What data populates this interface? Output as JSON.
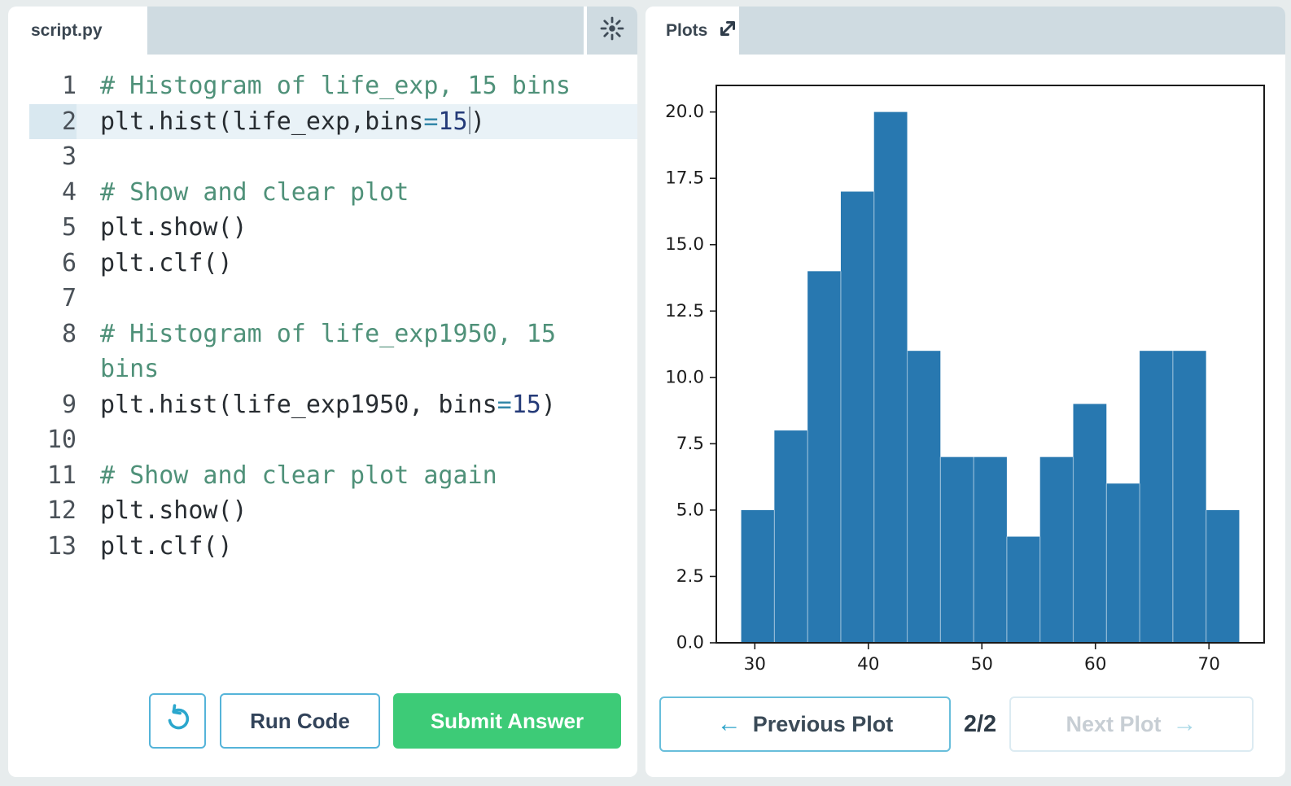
{
  "editor": {
    "tab_label": "script.py",
    "active_line": 2,
    "rows": [
      {
        "n": "1",
        "seg": [
          {
            "t": "# Histogram of life_exp, 15 bins",
            "c": "com"
          }
        ]
      },
      {
        "n": "2",
        "active": true,
        "seg": [
          {
            "t": "plt.hist(life_exp,bins",
            "c": "code"
          },
          {
            "t": "=",
            "c": "op"
          },
          {
            "t": "15",
            "c": "num",
            "cursor": true
          },
          {
            "t": ")",
            "c": "code"
          }
        ]
      },
      {
        "n": "3",
        "seg": []
      },
      {
        "n": "4",
        "seg": [
          {
            "t": "# Show and clear plot",
            "c": "com"
          }
        ]
      },
      {
        "n": "5",
        "seg": [
          {
            "t": "plt.show()",
            "c": "code"
          }
        ]
      },
      {
        "n": "6",
        "seg": [
          {
            "t": "plt.clf()",
            "c": "code"
          }
        ]
      },
      {
        "n": "7",
        "seg": []
      },
      {
        "n": "8",
        "seg": [
          {
            "t": "# Histogram of life_exp1950, 15",
            "c": "com"
          }
        ]
      },
      {
        "n": "",
        "seg": [
          {
            "t": "bins",
            "c": "com"
          }
        ]
      },
      {
        "n": "9",
        "seg": [
          {
            "t": "plt.hist(life_exp1950, bins",
            "c": "code"
          },
          {
            "t": "=",
            "c": "op"
          },
          {
            "t": "15",
            "c": "num"
          },
          {
            "t": ")",
            "c": "code"
          }
        ]
      },
      {
        "n": "10",
        "seg": []
      },
      {
        "n": "11",
        "seg": [
          {
            "t": "# Show and clear plot again",
            "c": "com"
          }
        ]
      },
      {
        "n": "12",
        "seg": [
          {
            "t": "plt.show()",
            "c": "code"
          }
        ]
      },
      {
        "n": "13",
        "seg": [
          {
            "t": "plt.clf()",
            "c": "code"
          }
        ]
      }
    ],
    "run_label": "Run Code",
    "submit_label": "Submit Answer",
    "icons": {
      "theme_toggle": "sun-icon",
      "reset": "undo-rotate-left-icon"
    }
  },
  "plots": {
    "tab_label": "Plots",
    "icons": {
      "expand": "expand-diagonal-arrows-icon",
      "prev": "arrow-left",
      "next": "arrow-right"
    },
    "prev_label": "Previous Plot",
    "counter": "2/2",
    "next_label": "Next Plot",
    "next_disabled": true
  },
  "chart_data": {
    "type": "bar",
    "subtype": "histogram",
    "title": "",
    "xlabel": "",
    "ylabel": "",
    "counts": [
      5,
      8,
      14,
      17,
      20,
      11,
      7,
      7,
      4,
      7,
      9,
      6,
      11,
      11,
      5
    ],
    "bin_start": 28.801,
    "bin_width": 2.9246,
    "xlim": [
      26.61,
      74.86
    ],
    "ylim": [
      0,
      21
    ],
    "xticks": [
      30,
      40,
      50,
      60,
      70
    ],
    "yticks": [
      0.0,
      2.5,
      5.0,
      7.5,
      10.0,
      12.5,
      15.0,
      17.5,
      20.0
    ],
    "grid": false,
    "legend": false,
    "bar_color": "#2878b0"
  },
  "colors": {
    "accent_blue": "#2ba7cd",
    "button_border_blue": "#55b4d9",
    "submit_green": "#3dcb77",
    "header_strip": "#cfdbe1",
    "page_background": "#e7eced",
    "active_line_highlight": "#e9f2f7",
    "comment_green": "#4f9179",
    "number_navy": "#243a78",
    "operator_teal": "#3387a8"
  }
}
